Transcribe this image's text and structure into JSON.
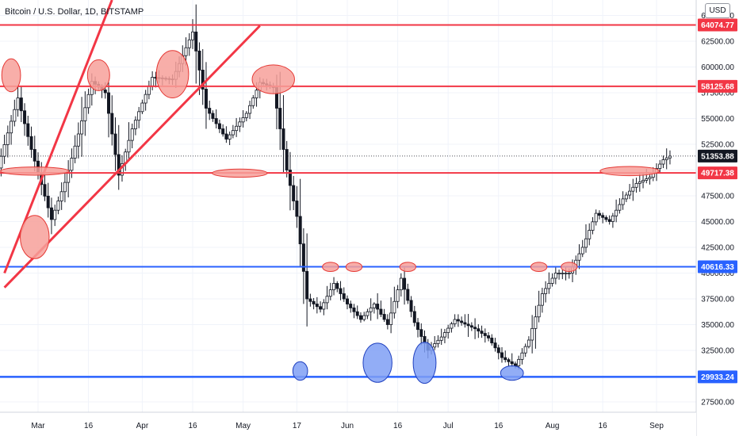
{
  "header": {
    "symbol_title": "Bitcoin / U.S. Dollar, 1D, BITSTAMP",
    "currency_button": "USD"
  },
  "colors": {
    "up_candle": "#ffffff",
    "candle_outline": "#131722",
    "resistance_line": "#f23645",
    "support_line": "#2962ff",
    "red_marker_fill": "#f7a09a",
    "blue_marker_fill": "#7f9ff5",
    "price_tag_dark": "#131722"
  },
  "chart_data": {
    "type": "candlestick",
    "title": "Bitcoin / U.S. Dollar, 1D, BITSTAMP",
    "ylim": [
      26500,
      66500
    ],
    "y_ticks": [
      27500,
      30000,
      32500,
      35000,
      37500,
      40000,
      42500,
      45000,
      47500,
      50000,
      52500,
      55000,
      57500,
      60000,
      62500,
      65000
    ],
    "x_ticks": [
      {
        "label": "Mar",
        "day": 0
      },
      {
        "label": "16",
        "day": 15
      },
      {
        "label": "Apr",
        "day": 31
      },
      {
        "label": "16",
        "day": 46
      },
      {
        "label": "May",
        "day": 61
      },
      {
        "label": "17",
        "day": 77
      },
      {
        "label": "Jun",
        "day": 92
      },
      {
        "label": "16",
        "day": 107
      },
      {
        "label": "Jul",
        "day": 122
      },
      {
        "label": "16",
        "day": 137
      },
      {
        "label": "Aug",
        "day": 153
      },
      {
        "label": "16",
        "day": 168
      },
      {
        "label": "Sep",
        "day": 184
      }
    ],
    "current_price": 51353.88,
    "horizontal_levels": [
      {
        "price": 64074.77,
        "kind": "resistance"
      },
      {
        "price": 58125.68,
        "kind": "resistance"
      },
      {
        "price": 49717.38,
        "kind": "resistance"
      },
      {
        "price": 40616.33,
        "kind": "support"
      },
      {
        "price": 29933.24,
        "kind": "support"
      }
    ],
    "trend_lines": [
      {
        "from": {
          "day": -10,
          "price": 40000
        },
        "to": {
          "day": 22,
          "price": 66500
        }
      },
      {
        "from": {
          "day": -10,
          "price": 38600
        },
        "to": {
          "day": 66,
          "price": 64000
        }
      }
    ],
    "red_markers": [
      {
        "day": -8,
        "price": 59200,
        "rx_days": 2.8,
        "ry_price": 1600
      },
      {
        "day": 18,
        "price": 59200,
        "rx_days": 3.3,
        "ry_price": 1500
      },
      {
        "day": 40,
        "price": 59300,
        "rx_days": 4.8,
        "ry_price": 2300
      },
      {
        "day": 70,
        "price": 58800,
        "rx_days": 6.3,
        "ry_price": 1400
      },
      {
        "day": -1,
        "price": 49900,
        "rx_days": 10.2,
        "ry_price": 400
      },
      {
        "day": -1,
        "price": 43500,
        "rx_days": 4.3,
        "ry_price": 2100
      },
      {
        "day": 60,
        "price": 49700,
        "rx_days": 8.2,
        "ry_price": 400
      },
      {
        "day": 87,
        "price": 40600,
        "rx_days": 2.4,
        "ry_price": 450
      },
      {
        "day": 94,
        "price": 40600,
        "rx_days": 2.4,
        "ry_price": 450
      },
      {
        "day": 110,
        "price": 40600,
        "rx_days": 2.4,
        "ry_price": 450
      },
      {
        "day": 149,
        "price": 40600,
        "rx_days": 2.4,
        "ry_price": 450
      },
      {
        "day": 158,
        "price": 40600,
        "rx_days": 2.4,
        "ry_price": 450
      },
      {
        "day": 176,
        "price": 49900,
        "rx_days": 8.8,
        "ry_price": 450
      }
    ],
    "blue_markers": [
      {
        "day": 78,
        "price": 30500,
        "rx_days": 2.2,
        "ry_price": 900
      },
      {
        "day": 101,
        "price": 31300,
        "rx_days": 4.3,
        "ry_price": 1900
      },
      {
        "day": 115,
        "price": 31300,
        "rx_days": 3.4,
        "ry_price": 2000
      },
      {
        "day": 141,
        "price": 30300,
        "rx_days": 3.4,
        "ry_price": 700
      }
    ]
  }
}
